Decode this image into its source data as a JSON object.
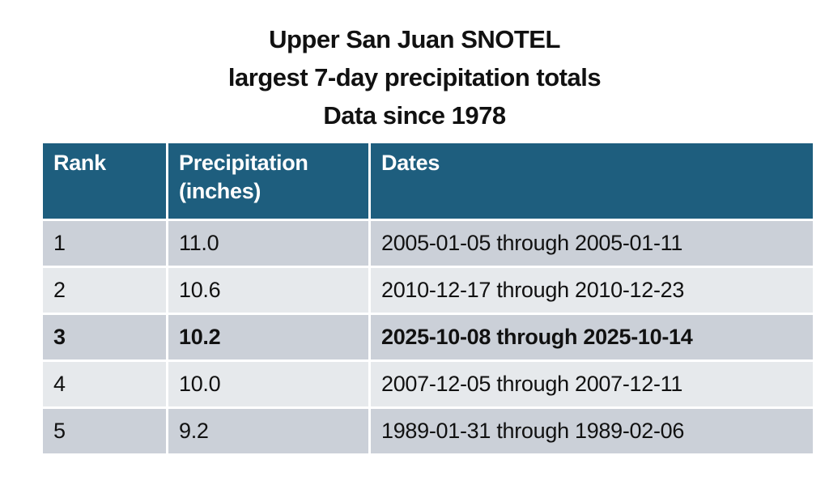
{
  "title": {
    "line1": "Upper San Juan SNOTEL",
    "line2": "largest 7-day precipitation totals",
    "line3": "Data since 1978"
  },
  "table": {
    "columns": [
      "Rank",
      "Precipitation (inches)",
      "Dates"
    ],
    "rows": [
      {
        "rank": "1",
        "precipitation": "11.0",
        "dates": "2005-01-05 through 2005-01-11",
        "emphasis": false
      },
      {
        "rank": "2",
        "precipitation": "10.6",
        "dates": "2010-12-17 through 2010-12-23",
        "emphasis": false
      },
      {
        "rank": "3",
        "precipitation": "10.2",
        "dates": "2025-10-08 through 2025-10-14",
        "emphasis": true
      },
      {
        "rank": "4",
        "precipitation": "10.0",
        "dates": "2007-12-05 through 2007-12-11",
        "emphasis": false
      },
      {
        "rank": "5",
        "precipitation": "9.2",
        "dates": "1989-01-31 through 1989-02-06",
        "emphasis": false
      }
    ]
  },
  "colors": {
    "background": "#ffffff",
    "header_bg": "#1e5e7e",
    "header_text": "#ffffff",
    "row_odd_bg": "#cbd0d8",
    "row_even_bg": "#e6e9ec",
    "text": "#111111"
  },
  "chart_data": {
    "type": "table",
    "title": "Upper San Juan SNOTEL largest 7-day precipitation totals Data since 1978",
    "columns": [
      "Rank",
      "Precipitation (inches)",
      "Dates"
    ],
    "rows": [
      [
        "1",
        "11.0",
        "2005-01-05 through 2005-01-11"
      ],
      [
        "2",
        "10.6",
        "2010-12-17 through 2010-12-23"
      ],
      [
        "3",
        "10.2",
        "2025-10-08 through 2025-10-14"
      ],
      [
        "4",
        "10.0",
        "2007-12-05 through 2007-12-11"
      ],
      [
        "5",
        "9.2",
        "1989-01-31 through 1989-02-06"
      ]
    ],
    "emphasized_row_rank": "3",
    "layout": {
      "header_style": "teal-banded",
      "row_striping": true
    }
  }
}
